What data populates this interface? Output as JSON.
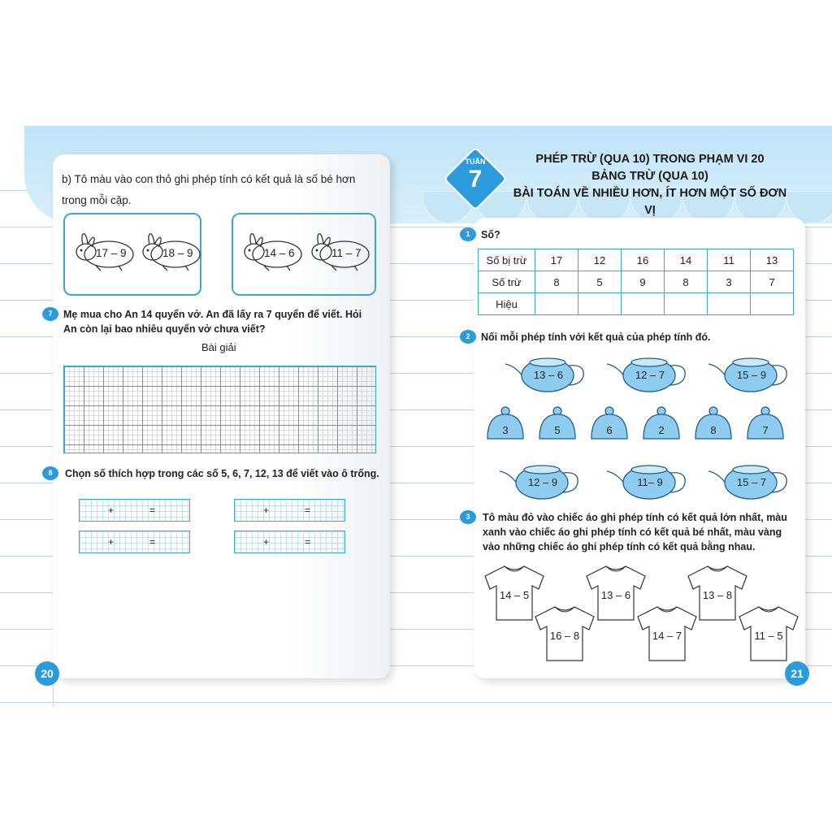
{
  "left_page": {
    "page_number": "20",
    "instruction_b": "b) Tô màu vào con thỏ ghi phép tính có kết quả là số bé hơn trong mỗi cặp.",
    "rabbit_pairs": [
      [
        "17 – 9",
        "18 – 9"
      ],
      [
        "14 – 6",
        "11 – 7"
      ]
    ],
    "q7": {
      "number": "7",
      "text": "Mẹ mua cho An 14 quyển vở. An đã lấy ra 7 quyển để viết. Hỏi An còn lại bao nhiêu quyển vở chưa viết?",
      "solution_label": "Bài giải"
    },
    "q8": {
      "number": "8",
      "text": "Chọn số thích hợp trong các số 5, 6, 7, 12, 13 để viết vào ô trống.",
      "plus": "+",
      "equals": "="
    }
  },
  "right_page": {
    "page_number": "21",
    "week_label": "TUẦN",
    "week_number": "7",
    "title_lines": [
      "PHÉP TRỪ (QUA 10) TRONG PHẠM VI 20",
      "BẢNG TRỪ (QUA 10)",
      "BÀI TOÁN VỀ NHIỀU HƠN, ÍT HƠN MỘT SỐ ĐƠN VỊ"
    ],
    "q1": {
      "number": "1",
      "text": "Số?",
      "rows": [
        {
          "label": "Số bị trừ",
          "values": [
            "17",
            "12",
            "16",
            "14",
            "11",
            "13"
          ]
        },
        {
          "label": "Số trừ",
          "values": [
            "8",
            "5",
            "9",
            "8",
            "3",
            "7"
          ]
        },
        {
          "label": "Hiệu",
          "values": [
            "",
            "",
            "",
            "",
            "",
            ""
          ]
        }
      ]
    },
    "q2": {
      "number": "2",
      "text": "Nối mỗi phép tính với kết quả của phép tính đó.",
      "teapots_top": [
        "13 – 6",
        "12 – 7",
        "15 – 9"
      ],
      "lids": [
        "3",
        "5",
        "6",
        "2",
        "8",
        "7"
      ],
      "teapots_bottom": [
        "12 – 9",
        "11– 9",
        "15 – 7"
      ]
    },
    "q3": {
      "number": "3",
      "text": "Tô màu đỏ vào chiếc áo ghi phép tính có kết quả lớn nhất, màu xanh vào chiếc áo ghi phép tính có kết quả bé nhất, màu vàng vào những chiếc áo ghi phép tính có kết quả bằng nhau.",
      "shirts": [
        "14 – 5",
        "13 – 6",
        "13 – 8",
        "16 – 8",
        "14 – 7",
        "11 – 5"
      ]
    }
  },
  "colors": {
    "accent": "#2b9bdc",
    "pot": "#8fcdf0",
    "awning": "#c7e7f8"
  }
}
